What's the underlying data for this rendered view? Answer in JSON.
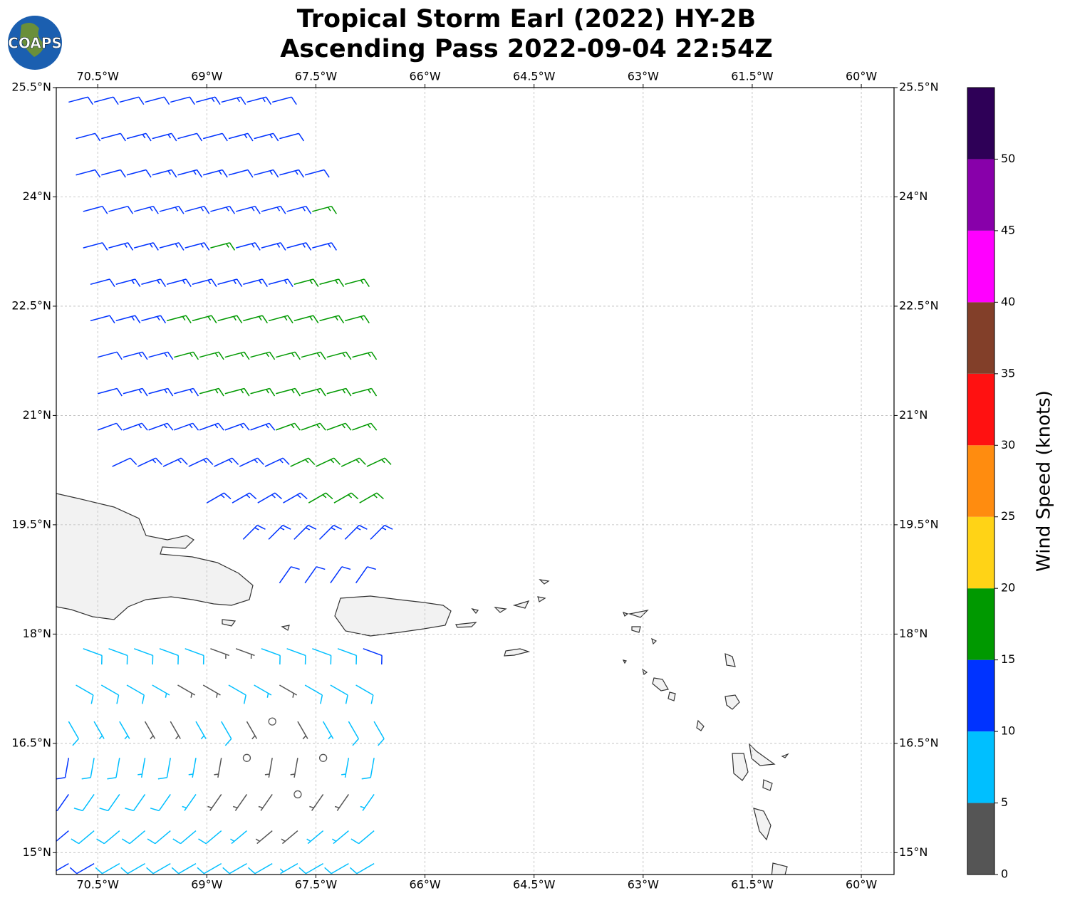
{
  "logo_text": "COAPS",
  "chart_data": {
    "type": "wind-barb-map",
    "title": [
      "Tropical Storm Earl (2022) HY-2B",
      "Ascending Pass 2022-09-04 22:54Z"
    ],
    "xlim": [
      -71.07,
      -59.55
    ],
    "ylim": [
      14.7,
      25.5
    ],
    "xticks": [
      {
        "value": -70.5,
        "label": "70.5°W"
      },
      {
        "value": -69,
        "label": "69°W"
      },
      {
        "value": -67.5,
        "label": "67.5°W"
      },
      {
        "value": -66,
        "label": "66°W"
      },
      {
        "value": -64.5,
        "label": "64.5°W"
      },
      {
        "value": -63,
        "label": "63°W"
      },
      {
        "value": -61.5,
        "label": "61.5°W"
      },
      {
        "value": -60,
        "label": "60°W"
      }
    ],
    "yticks": [
      {
        "value": 15,
        "label": "15°N"
      },
      {
        "value": 16.5,
        "label": "16.5°N"
      },
      {
        "value": 18,
        "label": "18°N"
      },
      {
        "value": 19.5,
        "label": "19.5°N"
      },
      {
        "value": 21,
        "label": "21°N"
      },
      {
        "value": 22.5,
        "label": "22.5°N"
      },
      {
        "value": 24,
        "label": "24°N"
      },
      {
        "value": 25.5,
        "label": "25.5°N"
      }
    ],
    "grid": true,
    "colorbar": {
      "label": "Wind Speed (knots)",
      "bins": [
        0,
        5,
        10,
        15,
        20,
        25,
        30,
        35,
        40,
        45,
        50,
        55
      ],
      "colors": [
        "#555555",
        "#00bfff",
        "#0033ff",
        "#009900",
        "#ffd316",
        "#ff8c0f",
        "#ff1111",
        "#823f29",
        "#ff00ff",
        "#8800aa",
        "#2e0057"
      ],
      "ticks": [
        0,
        5,
        10,
        15,
        20,
        25,
        30,
        35,
        40,
        45,
        50
      ]
    },
    "barb_rows": [
      {
        "lat": 25.3,
        "lon_start": -70.9,
        "lon_step": 0.35,
        "direction": 75,
        "speeds": [
          12,
          12,
          12,
          12,
          12,
          13,
          13,
          13,
          12
        ]
      },
      {
        "lat": 24.8,
        "lon_start": -70.8,
        "lon_step": 0.35,
        "direction": 75,
        "speeds": [
          12,
          12,
          13,
          13,
          12,
          12,
          13,
          13,
          12
        ]
      },
      {
        "lat": 24.3,
        "lon_start": -70.8,
        "lon_step": 0.35,
        "direction": 75,
        "speeds": [
          12,
          12,
          12,
          13,
          13,
          13,
          12,
          13,
          13,
          12
        ]
      },
      {
        "lat": 23.8,
        "lon_start": -70.7,
        "lon_step": 0.35,
        "direction": 75,
        "speeds": [
          12,
          12,
          13,
          13,
          13,
          13,
          13,
          14,
          14,
          16
        ]
      },
      {
        "lat": 23.3,
        "lon_start": -70.7,
        "lon_step": 0.35,
        "direction": 75,
        "speeds": [
          12,
          13,
          13,
          13,
          13,
          16,
          14,
          14,
          14,
          14
        ]
      },
      {
        "lat": 22.8,
        "lon_start": -70.6,
        "lon_step": 0.35,
        "direction": 75,
        "speeds": [
          12,
          13,
          13,
          14,
          14,
          14,
          14,
          14,
          16,
          16,
          16
        ]
      },
      {
        "lat": 22.3,
        "lon_start": -70.6,
        "lon_step": 0.35,
        "direction": 75,
        "speeds": [
          12,
          13,
          14,
          16,
          16,
          16,
          16,
          16,
          16,
          17,
          16
        ]
      },
      {
        "lat": 21.8,
        "lon_start": -70.5,
        "lon_step": 0.35,
        "direction": 75,
        "speeds": [
          12,
          13,
          14,
          16,
          17,
          17,
          17,
          17,
          17,
          17,
          16
        ]
      },
      {
        "lat": 21.3,
        "lon_start": -70.5,
        "lon_step": 0.35,
        "direction": 75,
        "speeds": [
          12,
          13,
          14,
          14,
          16,
          16,
          17,
          17,
          17,
          17,
          16
        ]
      },
      {
        "lat": 20.8,
        "lon_start": -70.5,
        "lon_step": 0.35,
        "direction": 70,
        "speeds": [
          12,
          13,
          13,
          14,
          14,
          14,
          14,
          16,
          17,
          17,
          16
        ]
      },
      {
        "lat": 20.3,
        "lon_start": -70.3,
        "lon_step": 0.35,
        "direction": 65,
        "speeds": [
          12,
          13,
          13,
          13,
          14,
          14,
          14,
          16,
          17,
          17,
          16
        ]
      },
      {
        "lat": 19.8,
        "lon_start": -69.0,
        "lon_step": 0.35,
        "direction": 60,
        "speeds": [
          13,
          13,
          14,
          14,
          16,
          17,
          16
        ]
      },
      {
        "lat": 19.3,
        "lon_start": -68.5,
        "lon_step": 0.35,
        "direction": 45,
        "speeds": [
          13,
          13,
          13,
          13,
          13,
          13
        ]
      },
      {
        "lat": 18.7,
        "lon_start": -68.0,
        "lon_step": 0.35,
        "direction": 35,
        "speeds": [
          12,
          12,
          12,
          12
        ]
      },
      {
        "lat": 17.8,
        "lon_start": -70.7,
        "lon_step": 0.35,
        "direction": 110,
        "speeds": [
          8,
          8,
          9,
          9,
          8,
          4,
          4,
          8,
          8,
          8,
          9,
          12
        ]
      },
      {
        "lat": 17.3,
        "lon_start": -70.8,
        "lon_step": 0.35,
        "direction": 120,
        "speeds": [
          8,
          8,
          8,
          7,
          3,
          4,
          8,
          7,
          4,
          8,
          8,
          9
        ]
      },
      {
        "lat": 16.8,
        "lon_start": -70.9,
        "lon_step": 0.35,
        "direction": 150,
        "speeds": [
          8,
          7,
          7,
          4,
          3,
          7,
          8,
          3,
          0,
          3,
          7,
          8,
          8
        ]
      },
      {
        "lat": 16.3,
        "lon_start": -70.9,
        "lon_step": 0.35,
        "direction": 190,
        "speeds": [
          12,
          8,
          8,
          7,
          8,
          7,
          3,
          0,
          4,
          3,
          0,
          7,
          8
        ]
      },
      {
        "lat": 15.8,
        "lon_start": -70.9,
        "lon_step": 0.35,
        "direction": 215,
        "speeds": [
          12,
          8,
          8,
          8,
          8,
          7,
          4,
          3,
          3,
          0,
          4,
          4,
          7
        ]
      },
      {
        "lat": 15.3,
        "lon_start": -70.9,
        "lon_step": 0.35,
        "direction": 230,
        "speeds": [
          12,
          8,
          8,
          8,
          8,
          8,
          8,
          7,
          4,
          4,
          7,
          7,
          8
        ]
      },
      {
        "lat": 14.85,
        "lon_start": -70.9,
        "lon_step": 0.35,
        "direction": 240,
        "speeds": [
          12,
          12,
          9,
          9,
          9,
          8,
          8,
          8,
          8,
          7,
          8,
          8,
          8
        ]
      }
    ]
  }
}
